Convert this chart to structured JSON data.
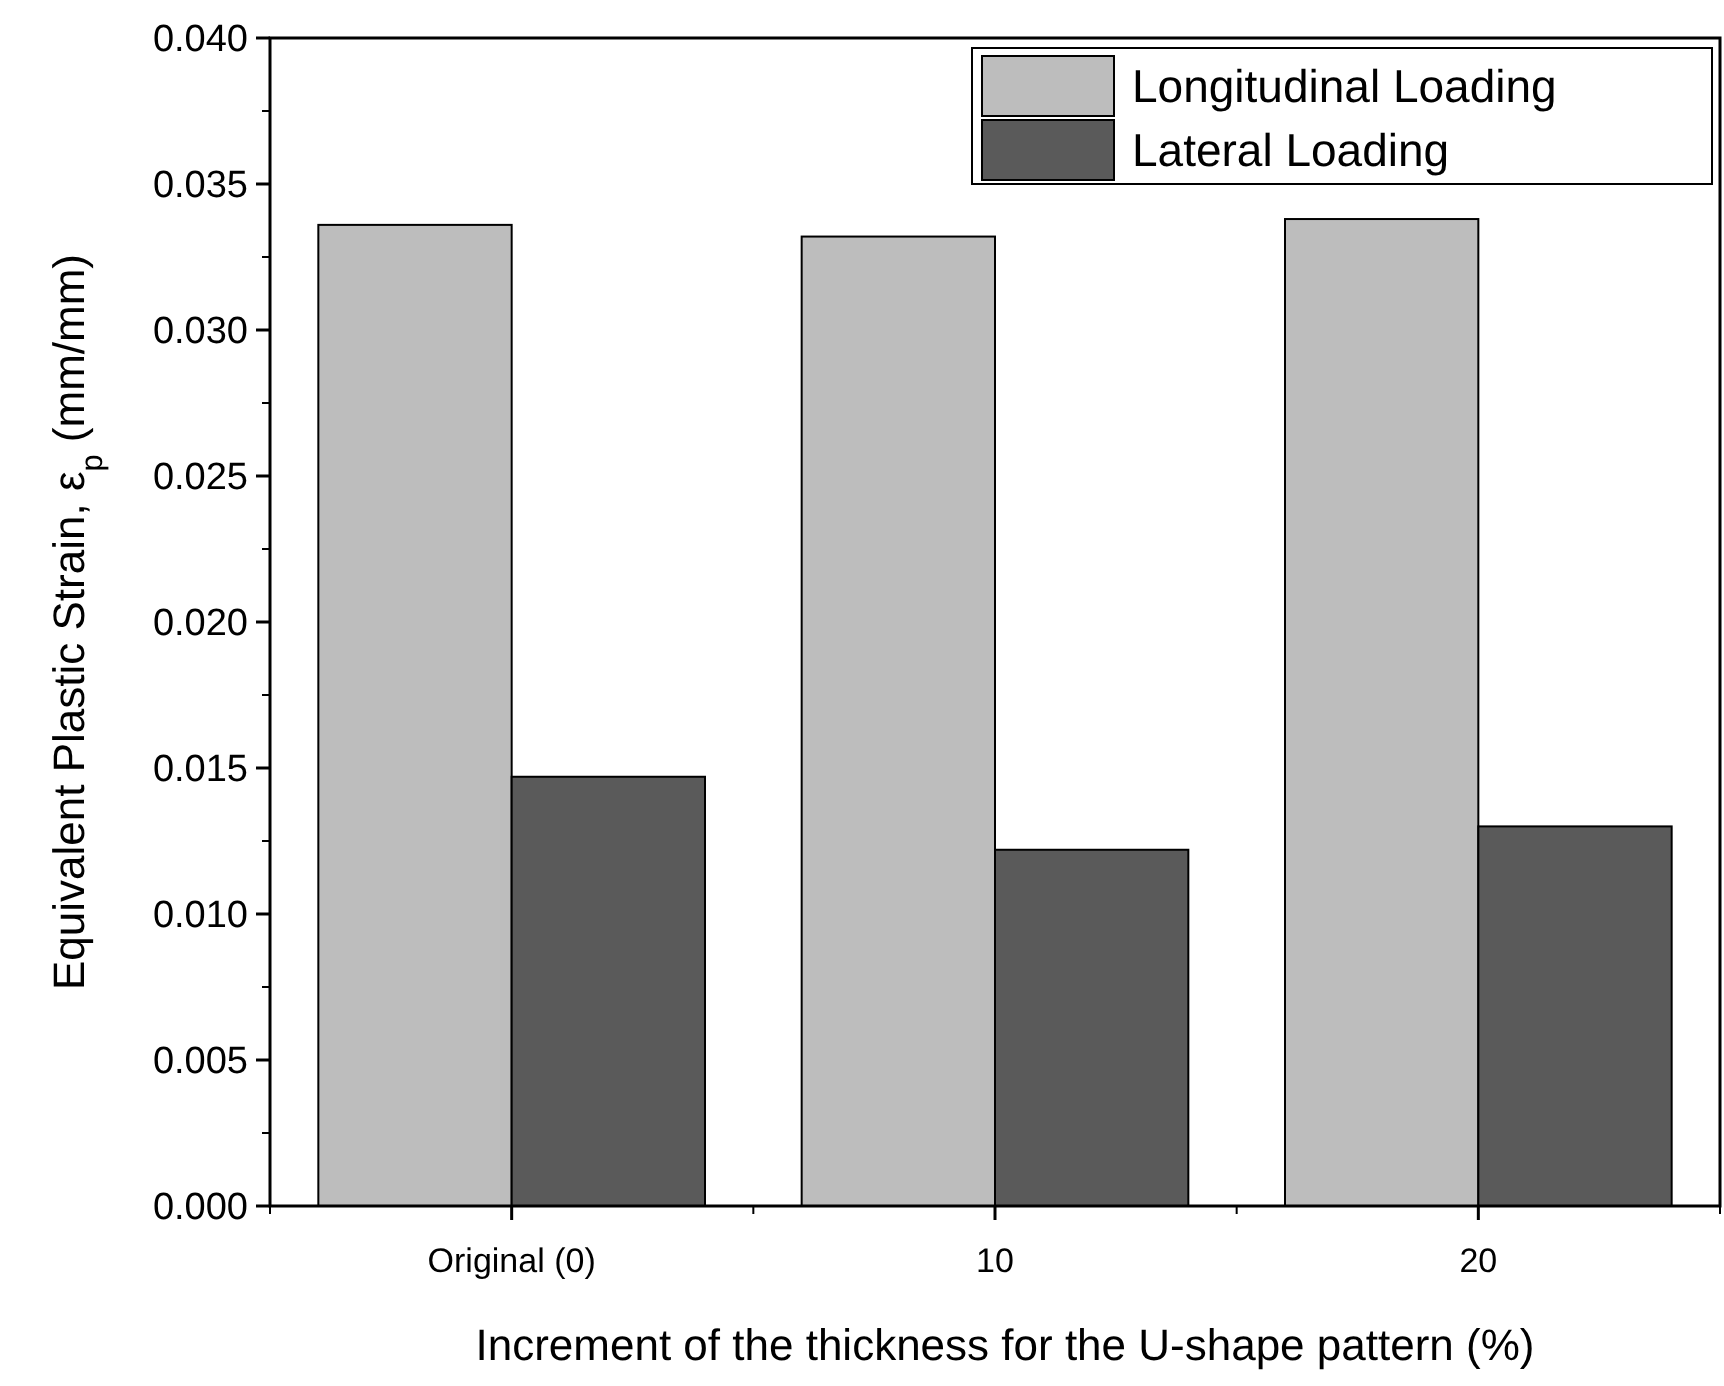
{
  "chart_data": {
    "type": "bar",
    "xlabel": "Increment of the thickness for the U-shape pattern (%)",
    "ylabel": "Equivalent Plastic Strain, ε$_{p}$ (mm/mm)",
    "categories": [
      "Original (0)",
      "10",
      "20"
    ],
    "series": [
      {
        "name": "Longitudinal Loading",
        "color": "#bdbdbd",
        "values": [
          0.0336,
          0.0332,
          0.0338
        ]
      },
      {
        "name": "Lateral Loading",
        "color": "#5a5a5a",
        "values": [
          0.0147,
          0.0122,
          0.013
        ]
      }
    ],
    "ylim": [
      0,
      0.04
    ],
    "yticks": [
      {
        "value": 0,
        "label": "0.000"
      },
      {
        "value": 0.005,
        "label": "0.005"
      },
      {
        "value": 0.01,
        "label": "0.010"
      },
      {
        "value": 0.015,
        "label": "0.015"
      },
      {
        "value": 0.02,
        "label": "0.020"
      },
      {
        "value": 0.025,
        "label": "0.025"
      },
      {
        "value": 0.03,
        "label": "0.030"
      },
      {
        "value": 0.035,
        "label": "0.035"
      },
      {
        "value": 0.04,
        "label": "0.040"
      }
    ],
    "legend": "top right",
    "grid": false
  }
}
